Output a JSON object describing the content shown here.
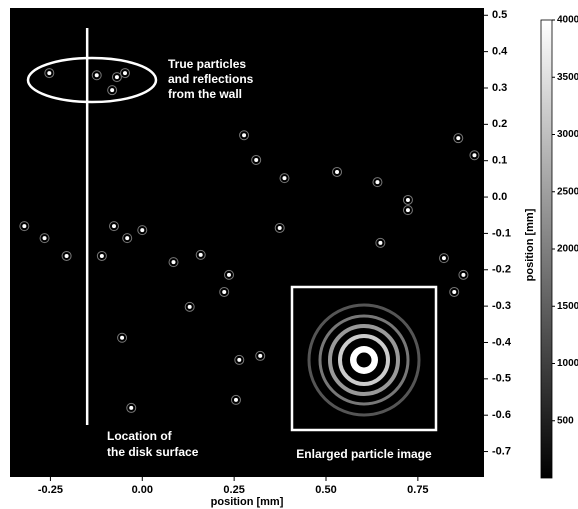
{
  "chart_data": {
    "type": "image",
    "x_label": "position [mm]",
    "y_label": "position [mm]",
    "xlim": [
      -0.36,
      0.93
    ],
    "ylim": [
      -0.77,
      0.52
    ],
    "xticks": [
      -0.25,
      {
        "value": 0,
        "label": "0.00"
      },
      0.25,
      {
        "value": 0.5,
        "label": "0.50"
      },
      0.75
    ],
    "yticks": [
      0.5,
      0.4,
      0.3,
      0.2,
      0.1,
      {
        "value": 0,
        "label": "0.0"
      },
      -0.1,
      -0.2,
      -0.3,
      -0.4,
      -0.5,
      -0.6,
      -0.7
    ],
    "clim": [
      0,
      4000
    ],
    "cticks": [
      4000,
      3500,
      3000,
      2500,
      2000,
      1500,
      1000,
      500
    ],
    "series": [
      {
        "name": "particles",
        "color": "#ffffff",
        "x": [
          -0.253,
          -0.124,
          -0.069,
          -0.047,
          -0.082,
          0.31,
          0.387,
          0.277,
          0.53,
          0.64,
          0.723,
          0.904,
          0.86,
          0.374,
          0.648,
          0.723,
          0,
          -0.041,
          -0.077,
          -0.11,
          -0.206,
          -0.321,
          -0.266,
          0.159,
          0.085,
          0.236,
          0.223,
          0.129,
          -0.055,
          0.264,
          0.321,
          0.849,
          0.874,
          0.821,
          0.255,
          -0.03
        ],
        "values": [
          0.341,
          0.335,
          0.33,
          0.341,
          0.294,
          0.102,
          0.052,
          0.17,
          0.069,
          0.041,
          -0.008,
          0.115,
          0.162,
          -0.085,
          -0.126,
          -0.036,
          -0.091,
          -0.113,
          -0.08,
          -0.162,
          -0.162,
          -0.08,
          -0.113,
          -0.159,
          -0.179,
          -0.214,
          -0.261,
          -0.302,
          -0.387,
          -0.448,
          -0.437,
          -0.261,
          -0.214,
          -0.168,
          -0.558,
          -0.58
        ]
      }
    ],
    "annotations": {
      "reflections": [
        "True particles",
        "and reflections",
        "from the wall"
      ],
      "disk_surface": {
        "x": -0.15,
        "lines": [
          "Location of",
          "the disk surface"
        ]
      },
      "inset": "Enlarged particle image"
    }
  }
}
